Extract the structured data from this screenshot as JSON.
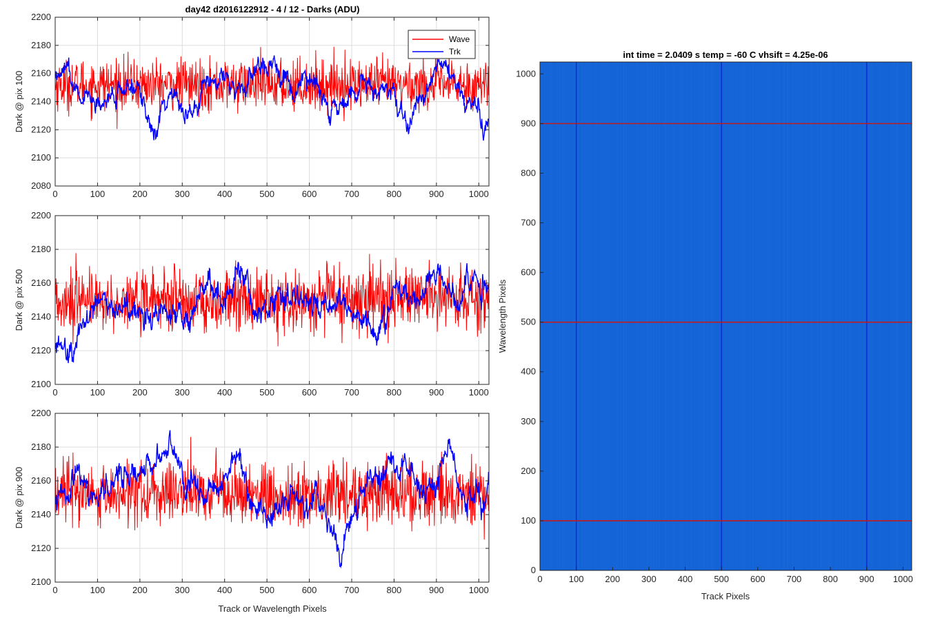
{
  "figure": {
    "title": "day42 d2016122912 - 4 / 12 - Darks (ADU)",
    "xlabel_left": "Track or Wavelength Pixels"
  },
  "legend": {
    "items": [
      "Wave",
      "Trk"
    ]
  },
  "colors": {
    "wave": "#ff0000",
    "trk": "#0000ff",
    "image_bg": "#1565d8",
    "image_col": "#0a2fd0",
    "image_row": "#c41a1a",
    "grid": "#dcdcdc"
  },
  "chart_data": [
    {
      "type": "line",
      "ylabel": "Dark @ pix 100",
      "xlim": [
        0,
        1024
      ],
      "ylim": [
        2080,
        2200
      ],
      "xticks": [
        0,
        100,
        200,
        300,
        400,
        500,
        600,
        700,
        800,
        900,
        1000
      ],
      "yticks": [
        2080,
        2100,
        2120,
        2140,
        2160,
        2180,
        2200
      ],
      "grid": true,
      "legend_position": "top-right",
      "series": [
        {
          "name": "Wave",
          "mean": 2152,
          "noise": 9,
          "min": 2097,
          "max": 2195,
          "x_count": 1024
        },
        {
          "name": "Trk",
          "anchors": [
            [
              0,
              2158
            ],
            [
              30,
              2164
            ],
            [
              60,
              2145
            ],
            [
              100,
              2140
            ],
            [
              150,
              2148
            ],
            [
              200,
              2146
            ],
            [
              230,
              2118
            ],
            [
              260,
              2140
            ],
            [
              280,
              2148
            ],
            [
              300,
              2130
            ],
            [
              330,
              2136
            ],
            [
              360,
              2155
            ],
            [
              400,
              2158
            ],
            [
              440,
              2150
            ],
            [
              480,
              2162
            ],
            [
              520,
              2172
            ],
            [
              560,
              2145
            ],
            [
              600,
              2160
            ],
            [
              630,
              2145
            ],
            [
              650,
              2132
            ],
            [
              700,
              2142
            ],
            [
              730,
              2158
            ],
            [
              760,
              2140
            ],
            [
              800,
              2150
            ],
            [
              830,
              2125
            ],
            [
              870,
              2145
            ],
            [
              900,
              2165
            ],
            [
              930,
              2160
            ],
            [
              970,
              2140
            ],
            [
              1000,
              2135
            ],
            [
              1024,
              2120
            ]
          ],
          "min": 2107,
          "max": 2182
        }
      ]
    },
    {
      "type": "line",
      "ylabel": "Dark @ pix 500",
      "xlim": [
        0,
        1024
      ],
      "ylim": [
        2100,
        2200
      ],
      "xticks": [
        0,
        100,
        200,
        300,
        400,
        500,
        600,
        700,
        800,
        900,
        1000
      ],
      "yticks": [
        2100,
        2120,
        2140,
        2160,
        2180,
        2200
      ],
      "grid": true,
      "series": [
        {
          "name": "Wave",
          "mean": 2150,
          "noise": 9,
          "min": 2100,
          "max": 2186,
          "x_count": 1024
        },
        {
          "name": "Trk",
          "anchors": [
            [
              0,
              2122
            ],
            [
              40,
              2118
            ],
            [
              70,
              2140
            ],
            [
              100,
              2150
            ],
            [
              140,
              2145
            ],
            [
              180,
              2148
            ],
            [
              220,
              2135
            ],
            [
              250,
              2145
            ],
            [
              300,
              2140
            ],
            [
              330,
              2148
            ],
            [
              360,
              2160
            ],
            [
              400,
              2150
            ],
            [
              430,
              2170
            ],
            [
              470,
              2148
            ],
            [
              520,
              2150
            ],
            [
              560,
              2150
            ],
            [
              600,
              2150
            ],
            [
              640,
              2148
            ],
            [
              700,
              2145
            ],
            [
              760,
              2130
            ],
            [
              800,
              2155
            ],
            [
              850,
              2148
            ],
            [
              900,
              2162
            ],
            [
              950,
              2148
            ],
            [
              1000,
              2165
            ],
            [
              1024,
              2158
            ]
          ],
          "min": 2108,
          "max": 2181
        }
      ]
    },
    {
      "type": "line",
      "ylabel": "Dark @ pix 900",
      "xlim": [
        0,
        1024
      ],
      "ylim": [
        2100,
        2200
      ],
      "xticks": [
        0,
        100,
        200,
        300,
        400,
        500,
        600,
        700,
        800,
        900,
        1000
      ],
      "yticks": [
        2100,
        2120,
        2140,
        2160,
        2180,
        2200
      ],
      "grid": true,
      "series": [
        {
          "name": "Wave",
          "mean": 2152,
          "noise": 9,
          "min": 2109,
          "max": 2186,
          "x_count": 1024
        },
        {
          "name": "Trk",
          "anchors": [
            [
              0,
              2150
            ],
            [
              50,
              2165
            ],
            [
              100,
              2150
            ],
            [
              140,
              2155
            ],
            [
              160,
              2168
            ],
            [
              200,
              2165
            ],
            [
              240,
              2170
            ],
            [
              270,
              2182
            ],
            [
              300,
              2162
            ],
            [
              340,
              2155
            ],
            [
              380,
              2150
            ],
            [
              430,
              2175
            ],
            [
              460,
              2150
            ],
            [
              500,
              2140
            ],
            [
              550,
              2148
            ],
            [
              620,
              2150
            ],
            [
              680,
              2118
            ],
            [
              720,
              2150
            ],
            [
              780,
              2165
            ],
            [
              820,
              2170
            ],
            [
              860,
              2155
            ],
            [
              900,
              2155
            ],
            [
              930,
              2178
            ],
            [
              960,
              2150
            ],
            [
              1000,
              2148
            ],
            [
              1024,
              2155
            ]
          ],
          "min": 2108,
          "max": 2190
        }
      ]
    },
    {
      "type": "heatmap",
      "title": "int time = 2.0409 s    temp = -60 C    vhsift = 4.25e-06",
      "xlabel": "Track Pixels",
      "ylabel": "Wavelength Pixels",
      "xlim": [
        0,
        1024
      ],
      "ylim": [
        0,
        1024
      ],
      "xticks": [
        0,
        100,
        200,
        300,
        400,
        500,
        600,
        700,
        800,
        900,
        1000
      ],
      "yticks": [
        0,
        100,
        200,
        300,
        400,
        500,
        600,
        700,
        800,
        900,
        1000
      ],
      "marker_columns": [
        100,
        500,
        900
      ],
      "marker_rows": [
        100,
        500,
        900
      ]
    }
  ]
}
